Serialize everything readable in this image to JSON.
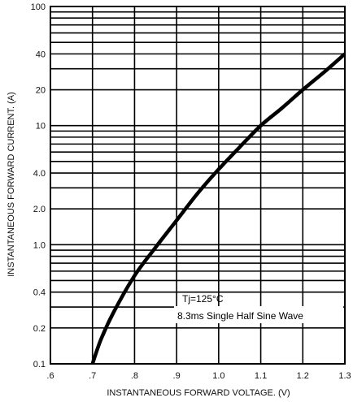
{
  "chart_data": {
    "type": "line",
    "xlabel": "INSTANTANEOUS FORWARD VOLTAGE. (V)",
    "ylabel": "INSTANTANEOUS FORWARD CURRENT. (A)",
    "x_scale": "linear",
    "y_scale": "log",
    "xlim": [
      0.6,
      1.3
    ],
    "ylim": [
      0.1,
      100
    ],
    "grid": true,
    "x_ticks": [
      0.6,
      0.7,
      0.8,
      0.9,
      1.0,
      1.1,
      1.2,
      1.3
    ],
    "x_tick_labels": [
      ".6",
      ".7",
      ".8",
      ".9",
      "1.0",
      "1.1",
      "1.2",
      "1.3"
    ],
    "y_ticks": [
      0.1,
      0.2,
      0.4,
      1.0,
      2.0,
      4.0,
      10,
      20,
      40,
      100
    ],
    "y_tick_labels": [
      "0.1",
      "0.2",
      "0.4",
      "1.0",
      "2.0",
      "4.0",
      "10",
      "20",
      "40",
      "100"
    ],
    "series": [
      {
        "x": [
          0.7,
          0.72,
          0.75,
          0.8,
          0.85,
          0.9,
          0.95,
          1.0,
          1.05,
          1.1,
          1.15,
          1.2,
          1.25,
          1.3
        ],
        "y": [
          0.1,
          0.16,
          0.27,
          0.55,
          0.95,
          1.6,
          2.7,
          4.3,
          6.6,
          10,
          14,
          20,
          28,
          40
        ]
      }
    ],
    "annotations": [
      "Tj=125°C",
      "8.3ms Single Half Sine Wave"
    ]
  }
}
